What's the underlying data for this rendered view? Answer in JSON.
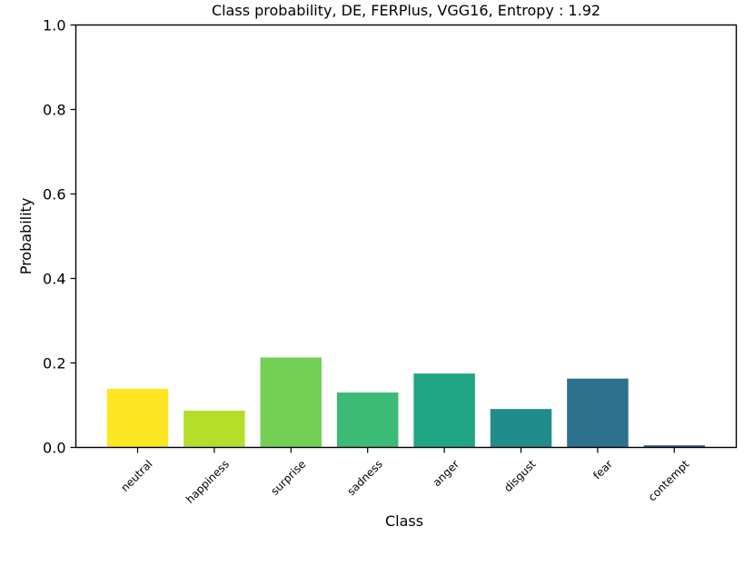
{
  "chart_data": {
    "type": "bar",
    "title": "Class probability, DE, FERPlus, VGG16, Entropy : 1.92",
    "xlabel": "Class",
    "ylabel": "Probability",
    "ylim": [
      0,
      1.0
    ],
    "yticks": [
      "0.0",
      "0.2",
      "0.4",
      "0.6",
      "0.8",
      "1.0"
    ],
    "categories": [
      "neutral",
      "happiness",
      "surprise",
      "sadness",
      "anger",
      "disgust",
      "fear",
      "contempt"
    ],
    "values": [
      0.139,
      0.087,
      0.213,
      0.13,
      0.175,
      0.091,
      0.163,
      0.005
    ],
    "colors": [
      "#fde725",
      "#b5de2b",
      "#74d055",
      "#3bbb75",
      "#21a685",
      "#228c8d",
      "#2d718e",
      "#365c8d"
    ],
    "grid": false,
    "legend": "none"
  }
}
